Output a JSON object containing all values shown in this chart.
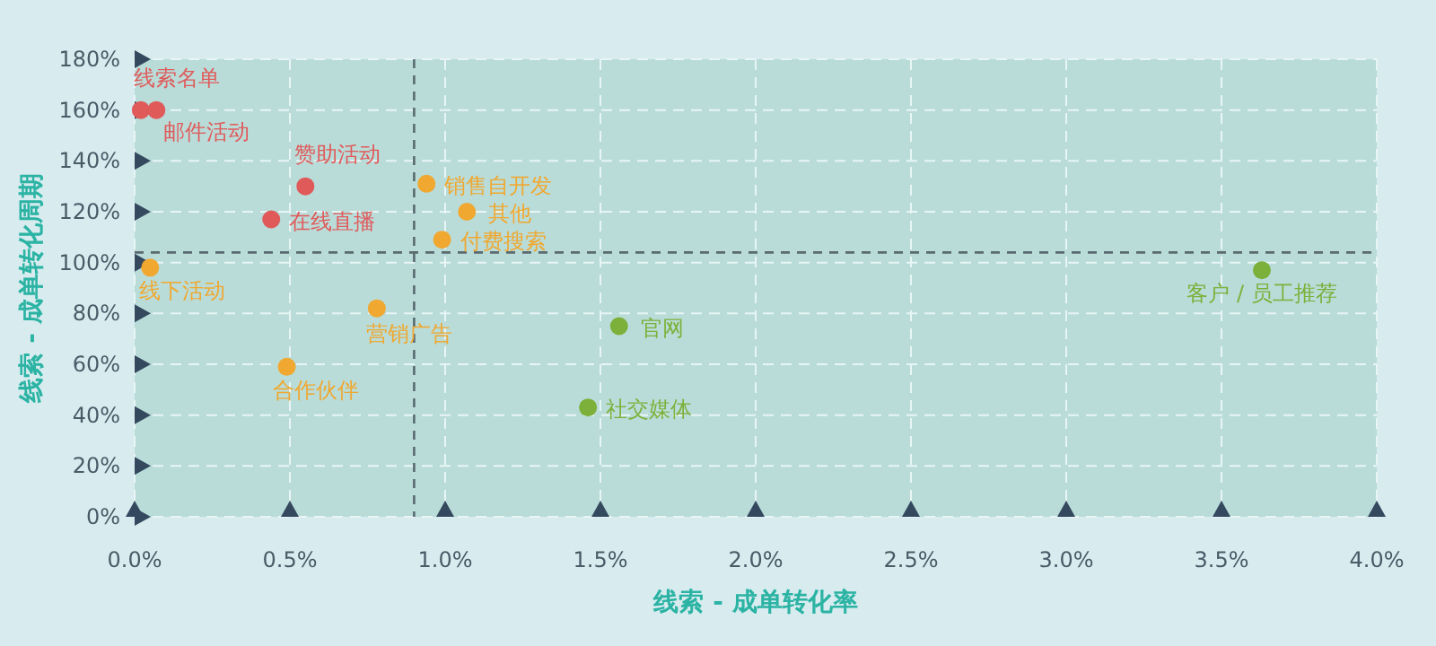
{
  "chart_data": {
    "type": "scatter",
    "xlabel": "线索 - 成单转化率",
    "ylabel": "线索 - 成单转化周期",
    "xlim": [
      0,
      4
    ],
    "ylim": [
      0,
      180
    ],
    "xticks": [
      {
        "value": 0,
        "label": "0.0%"
      },
      {
        "value": 0.5,
        "label": "0.5%"
      },
      {
        "value": 1,
        "label": "1.0%"
      },
      {
        "value": 1.5,
        "label": "1.5%"
      },
      {
        "value": 2,
        "label": "2.0%"
      },
      {
        "value": 2.5,
        "label": "2.5%"
      },
      {
        "value": 3,
        "label": "3.0%"
      },
      {
        "value": 3.5,
        "label": "3.5%"
      },
      {
        "value": 4,
        "label": "4.0%"
      }
    ],
    "yticks": [
      {
        "value": 0,
        "label": "0%"
      },
      {
        "value": 20,
        "label": "20%"
      },
      {
        "value": 40,
        "label": "40%"
      },
      {
        "value": 60,
        "label": "60%"
      },
      {
        "value": 80,
        "label": "80%"
      },
      {
        "value": 100,
        "label": "100%"
      },
      {
        "value": 120,
        "label": "120%"
      },
      {
        "value": 140,
        "label": "140%"
      },
      {
        "value": 160,
        "label": "160%"
      },
      {
        "value": 180,
        "label": "180%"
      }
    ],
    "grid": true,
    "marker": "circle",
    "series": [
      {
        "color": "#e05a5a",
        "x": [
          0.02,
          0.07,
          0.55,
          0.44
        ],
        "values": [
          160,
          160,
          130,
          117
        ]
      },
      {
        "color": "#f0a830",
        "x": [
          0.05,
          0.94,
          1.07,
          0.99,
          0.78,
          0.49
        ],
        "values": [
          98,
          131,
          120,
          109,
          82,
          59
        ]
      },
      {
        "color": "#7db03a",
        "x": [
          1.56,
          1.46,
          3.63
        ],
        "values": [
          75,
          43,
          97
        ]
      }
    ],
    "ref_lines": [
      {
        "axis": "x",
        "value": 0.9,
        "line_style": "dashed",
        "color": "#5a6a70"
      },
      {
        "axis": "y",
        "value": 104,
        "line_style": "dashed",
        "color": "#5a6a70"
      }
    ],
    "annotations": [
      {
        "text": "线索名单",
        "x": 0.02,
        "y": 160
      },
      {
        "text": "邮件活动",
        "x": 0.07,
        "y": 160
      },
      {
        "text": "赞助活动",
        "x": 0.55,
        "y": 130
      },
      {
        "text": "在线直播",
        "x": 0.44,
        "y": 117
      },
      {
        "text": "线下活动",
        "x": 0.05,
        "y": 98
      },
      {
        "text": "销售自开发",
        "x": 0.94,
        "y": 131
      },
      {
        "text": "其他",
        "x": 1.07,
        "y": 120
      },
      {
        "text": "付费搜索",
        "x": 0.99,
        "y": 109
      },
      {
        "text": "营销广告",
        "x": 0.78,
        "y": 82
      },
      {
        "text": "合作伙伴",
        "x": 0.49,
        "y": 59
      },
      {
        "text": "官网",
        "x": 1.56,
        "y": 75
      },
      {
        "text": "社交媒体",
        "x": 1.46,
        "y": 43
      },
      {
        "text": "客户 / 员工推荐",
        "x": 3.63,
        "y": 97
      }
    ]
  }
}
